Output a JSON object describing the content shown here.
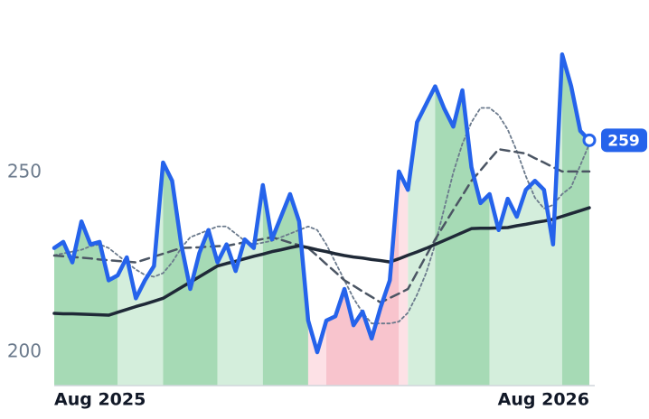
{
  "chart_data": {
    "type": "line",
    "categories": [
      "Aug 2025",
      null,
      null,
      null,
      null,
      null,
      null,
      null,
      null,
      null,
      null,
      null,
      null,
      null,
      null,
      null,
      null,
      null,
      null,
      null,
      null,
      null,
      null,
      null,
      null,
      null,
      null,
      null,
      null,
      null,
      null,
      null,
      null,
      null,
      null,
      null,
      null,
      null,
      null,
      null,
      null,
      null,
      null,
      null,
      null,
      null,
      null,
      null,
      null,
      null,
      null,
      null,
      null,
      null,
      null,
      null,
      null,
      null,
      null,
      "Aug 2026"
    ],
    "ylim": [
      190.7,
      290
    ],
    "yticks": [
      200,
      250
    ],
    "series": [
      {
        "color": "#2563eb",
        "style": "solid",
        "width": 4.5,
        "values": [
          229,
          230.7,
          225,
          236.4,
          230,
          230.7,
          220,
          221.4,
          226.4,
          215,
          220,
          224,
          252.8,
          247.7,
          230,
          217.6,
          227.6,
          234,
          225,
          230,
          222.6,
          231.4,
          229,
          246.5,
          231.4,
          237.7,
          244,
          236.4,
          208.8,
          200,
          208.8,
          210,
          217.6,
          207.5,
          211.3,
          203.8,
          212.6,
          220,
          250.3,
          245.2,
          264,
          269,
          274,
          267.8,
          262.8,
          272.9,
          251.5,
          241.5,
          244,
          234,
          242.7,
          237.7,
          245.2,
          247.7,
          245.2,
          230,
          282.9,
          274,
          261.6,
          259
        ]
      },
      {
        "color": "#1f2937",
        "style": "solid",
        "width": 3.5,
        "values": [
          210.8,
          210.7,
          210.7,
          210.6,
          210.5,
          210.4,
          210.3,
          211.1,
          211.9,
          212.7,
          213.4,
          214.2,
          215,
          216.5,
          218,
          219.5,
          221,
          222.5,
          224,
          224.7,
          225.3,
          226,
          226.7,
          227.3,
          228,
          228.5,
          229.1,
          229.6,
          229.1,
          228.5,
          228,
          227.4,
          226.9,
          226.5,
          226.2,
          225.8,
          225.5,
          225.1,
          226,
          227,
          227.9,
          228.9,
          230,
          231.1,
          232.2,
          233.3,
          234.4,
          234.5,
          234.5,
          234.6,
          234.7,
          235.2,
          235.6,
          236.1,
          236.5,
          237,
          237.8,
          238.6,
          239.4,
          240.2
        ]
      },
      {
        "color": "#4b5563",
        "style": "dashed",
        "width": 2.5,
        "values": [
          226.9,
          226.7,
          226.5,
          226.3,
          226.1,
          225.8,
          225.6,
          225.4,
          225.2,
          225,
          225.8,
          226.6,
          227.4,
          228.2,
          229,
          229.1,
          229.2,
          229.4,
          229.5,
          229.6,
          230.1,
          230.6,
          231,
          231.5,
          232,
          231.3,
          230.5,
          229.8,
          229,
          226.8,
          224.5,
          222.3,
          220,
          218.5,
          216.9,
          215.4,
          213.8,
          215.1,
          216.3,
          217.6,
          222.2,
          226.8,
          231.4,
          235.5,
          239.6,
          243.6,
          247.7,
          250.6,
          253.6,
          256.5,
          256.1,
          255.7,
          255.3,
          254,
          252.8,
          251.5,
          250.3,
          250.3,
          250.3,
          250.3
        ]
      },
      {
        "color": "#6b7a8c",
        "style": "dotted",
        "width": 1.8,
        "values": [
          227,
          227.5,
          228,
          228.5,
          229.5,
          230,
          229,
          227,
          225,
          223,
          221.5,
          221,
          222,
          225,
          229,
          232,
          233,
          234,
          235,
          235,
          233,
          231,
          230,
          230.5,
          231,
          232,
          233,
          234,
          235,
          234,
          230,
          225,
          220,
          215,
          211,
          208,
          208,
          208,
          208.5,
          211,
          216,
          222,
          230,
          240,
          250,
          258,
          264,
          268,
          268,
          266,
          262,
          256,
          249,
          243,
          240,
          241,
          244,
          246,
          252,
          258
        ]
      }
    ],
    "shading": [
      {
        "from": 0,
        "to": 7,
        "color": "#a6dab5"
      },
      {
        "from": 7,
        "to": 12,
        "color": "#d4eedc"
      },
      {
        "from": 12,
        "to": 18,
        "color": "#a6dab5"
      },
      {
        "from": 18,
        "to": 23,
        "color": "#d4eedc"
      },
      {
        "from": 23,
        "to": 28,
        "color": "#a6dab5"
      },
      {
        "from": 28,
        "to": 30,
        "color": "#fde1e6"
      },
      {
        "from": 30,
        "to": 38,
        "color": "#f8c4cd"
      },
      {
        "from": 38,
        "to": 39,
        "color": "#fde1e6"
      },
      {
        "from": 39,
        "to": 42,
        "color": "#d4eedc"
      },
      {
        "from": 42,
        "to": 48,
        "color": "#a6dab5"
      },
      {
        "from": 48,
        "to": 56,
        "color": "#d4eedc"
      },
      {
        "from": 56,
        "to": 59,
        "color": "#a6dab5"
      }
    ],
    "badge_color": "#2563eb",
    "axis_color": "#d1d5db"
  }
}
